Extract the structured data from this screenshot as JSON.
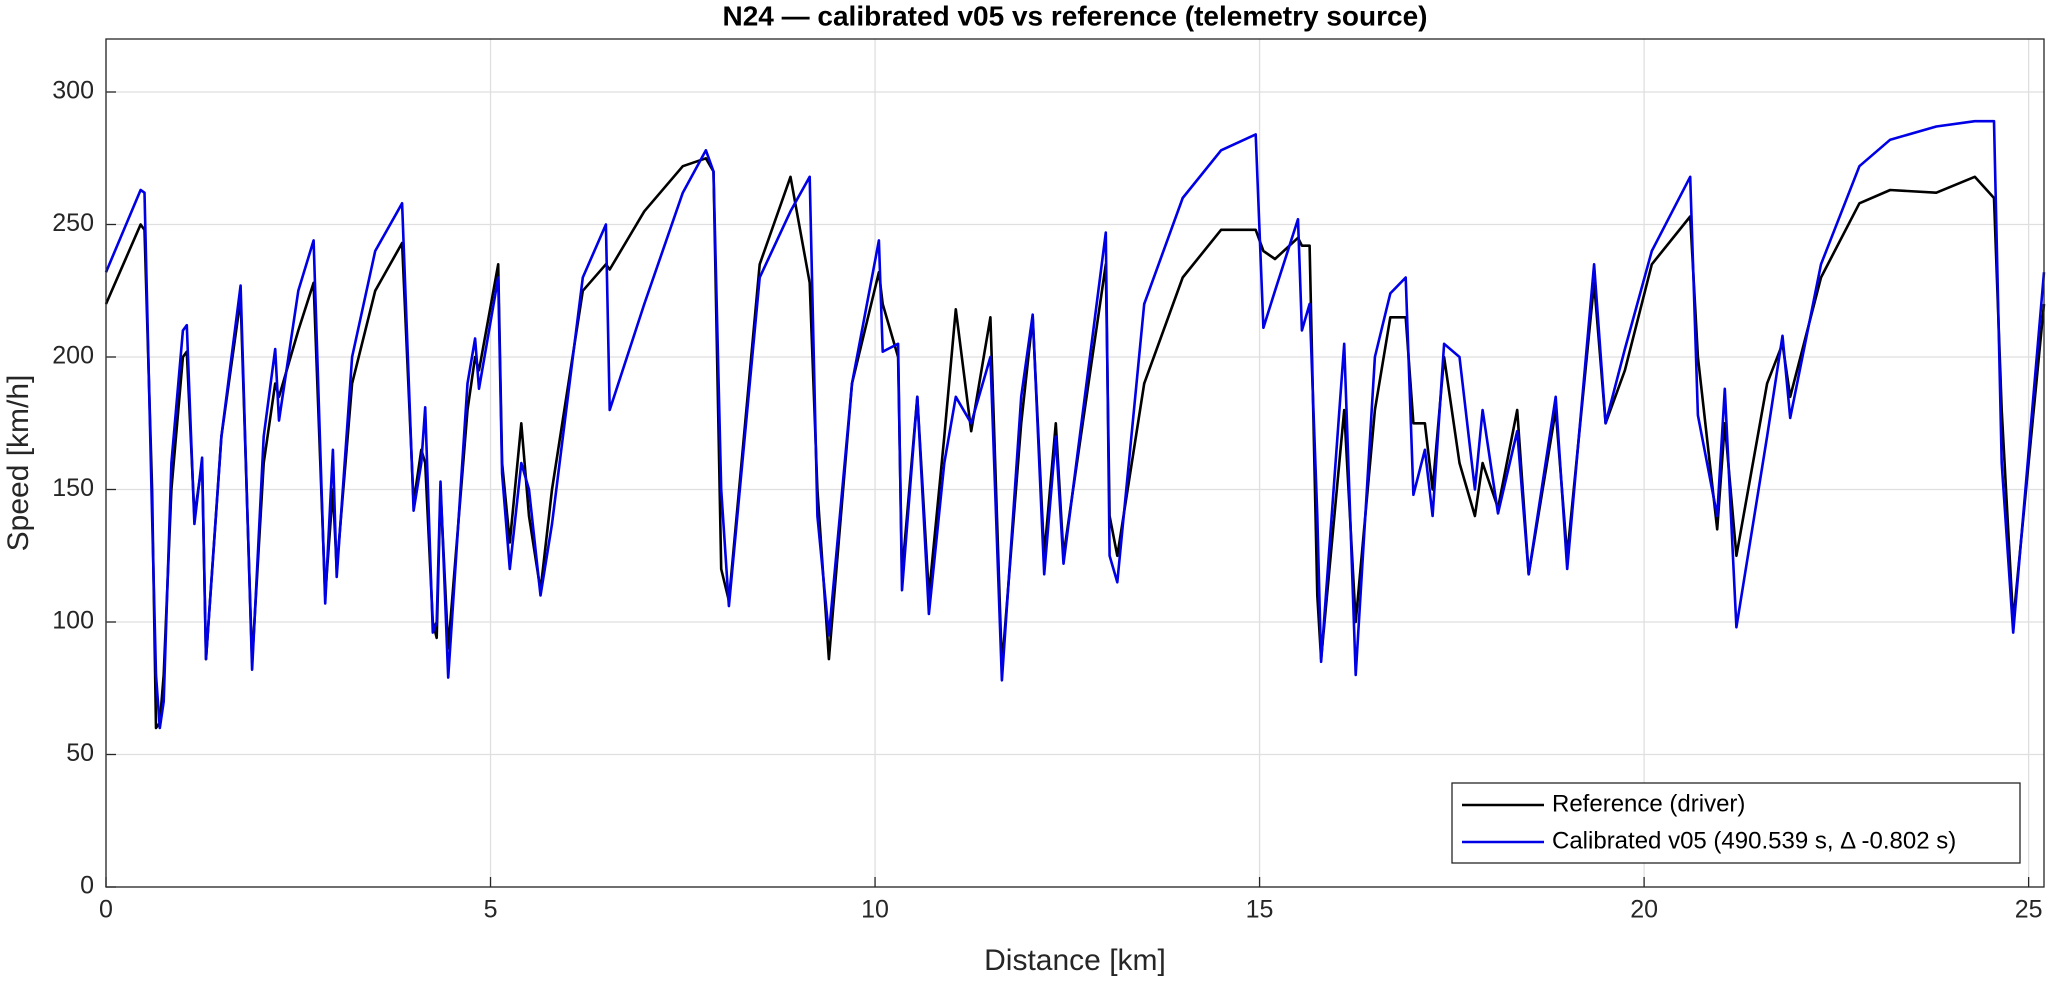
{
  "chart_data": {
    "type": "line",
    "title": "N24 — calibrated v05 vs reference (telemetry source)",
    "x_label": "Distance [km]",
    "y_label": "Speed [km/h]",
    "x": [
      0,
      0.45,
      0.5,
      0.6,
      0.65,
      0.7,
      0.75,
      0.85,
      1.0,
      1.05,
      1.15,
      1.25,
      1.3,
      1.5,
      1.75,
      1.9,
      2.05,
      2.2,
      2.25,
      2.5,
      2.7,
      2.85,
      2.95,
      3.0,
      3.2,
      3.5,
      3.85,
      4.0,
      4.1,
      4.15,
      4.25,
      4.3,
      4.35,
      4.45,
      4.7,
      4.8,
      4.85,
      5.1,
      5.15,
      5.25,
      5.4,
      5.5,
      5.65,
      5.8,
      6.2,
      6.5,
      6.55,
      7.0,
      7.5,
      7.8,
      7.9,
      8.0,
      8.1,
      8.5,
      8.9,
      9.15,
      9.25,
      9.4,
      9.7,
      10.05,
      10.1,
      10.3,
      10.35,
      10.55,
      10.7,
      10.9,
      11.05,
      11.25,
      11.5,
      11.65,
      11.9,
      12.05,
      12.2,
      12.35,
      12.45,
      13.0,
      13.05,
      13.15,
      13.5,
      14.0,
      14.5,
      14.95,
      15.05,
      15.2,
      15.5,
      15.55,
      15.65,
      15.75,
      15.8,
      16.1,
      16.25,
      16.5,
      16.7,
      16.9,
      17.0,
      17.15,
      17.25,
      17.4,
      17.6,
      17.8,
      17.9,
      18.1,
      18.35,
      18.5,
      18.85,
      19.0,
      19.35,
      19.5,
      19.75,
      20.1,
      20.6,
      20.7,
      20.95,
      21.05,
      21.2,
      21.6,
      21.8,
      21.9,
      22.3,
      22.8,
      23.2,
      23.8,
      24.3,
      24.55,
      24.65,
      24.8,
      25.2
    ],
    "series": [
      {
        "name": "Reference (driver)",
        "color": "#000000",
        "values": [
          220,
          250,
          248,
          150,
          60,
          62,
          80,
          150,
          200,
          202,
          140,
          160,
          86,
          170,
          222,
          85,
          160,
          190,
          185,
          210,
          228,
          110,
          150,
          120,
          190,
          225,
          243,
          145,
          165,
          160,
          100,
          94,
          150,
          90,
          180,
          200,
          195,
          235,
          160,
          130,
          175,
          140,
          112,
          150,
          225,
          235,
          233,
          255,
          272,
          275,
          270,
          120,
          108,
          235,
          268,
          228,
          150,
          86,
          190,
          232,
          220,
          200,
          118,
          185,
          110,
          170,
          218,
          172,
          215,
          83,
          175,
          215,
          125,
          175,
          125,
          235,
          140,
          125,
          190,
          230,
          248,
          248,
          240,
          237,
          245,
          242,
          242,
          110,
          86,
          180,
          100,
          180,
          215,
          215,
          175,
          175,
          150,
          200,
          160,
          140,
          160,
          143,
          180,
          118,
          180,
          125,
          228,
          175,
          195,
          235,
          253,
          200,
          135,
          175,
          125,
          190,
          205,
          185,
          230,
          258,
          263,
          262,
          268,
          260,
          180,
          100,
          220
        ]
      },
      {
        "name": "Calibrated v05 (490.539 s, Δ -0.802 s)",
        "color": "#0000e6",
        "values": [
          232,
          263,
          262,
          140,
          80,
          60,
          70,
          160,
          210,
          212,
          137,
          162,
          86,
          170,
          227,
          82,
          170,
          203,
          176,
          225,
          244,
          107,
          165,
          117,
          200,
          240,
          258,
          142,
          160,
          181,
          96,
          100,
          153,
          79,
          190,
          207,
          188,
          230,
          156,
          120,
          160,
          150,
          110,
          137,
          230,
          250,
          180,
          220,
          262,
          278,
          270,
          150,
          106,
          230,
          255,
          268,
          140,
          95,
          190,
          244,
          202,
          205,
          112,
          185,
          103,
          160,
          185,
          175,
          200,
          78,
          185,
          216,
          118,
          170,
          122,
          247,
          125,
          115,
          220,
          260,
          278,
          284,
          211,
          225,
          252,
          210,
          220,
          140,
          85,
          205,
          80,
          200,
          224,
          230,
          148,
          165,
          140,
          205,
          200,
          150,
          180,
          141,
          172,
          118,
          185,
          120,
          235,
          175,
          203,
          240,
          268,
          178,
          140,
          188,
          98,
          170,
          208,
          177,
          235,
          272,
          282,
          287,
          289,
          289,
          160,
          96,
          232
        ]
      }
    ],
    "xlim": [
      0,
      25.2
    ],
    "ylim": [
      0,
      320
    ],
    "xticks": [
      0,
      5,
      10,
      15,
      20,
      25
    ],
    "yticks": [
      0,
      50,
      100,
      150,
      200,
      250,
      300
    ],
    "grid": true,
    "legend": "lower right"
  }
}
